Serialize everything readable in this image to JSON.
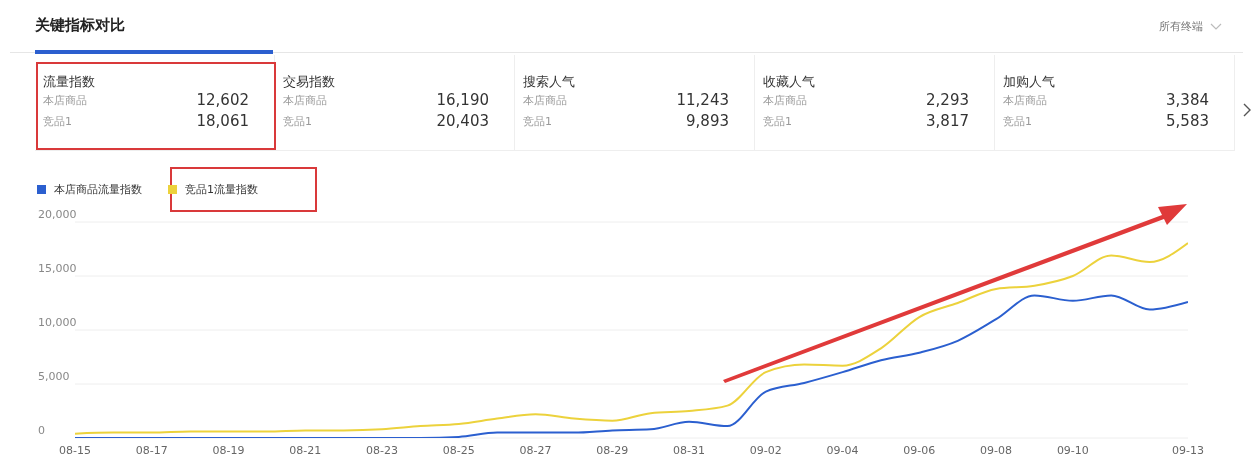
{
  "chart_data": [
    {
      "type": "other",
      "title": "关键指标对比",
      "annotations": [
        "所有终端",
        "流量指数",
        "本店商品",
        "12,602",
        "竞品1",
        "18,061",
        "交易指数",
        "本店商品",
        "16,190",
        "竞品1",
        "20,403",
        "搜索人气",
        "本店商品",
        "11,243",
        "竞品1",
        "9,893",
        "收藏人气",
        "本店商品",
        "2,293",
        "竞品1",
        "3,817",
        "加购人气",
        "本店商品",
        "3,384",
        "竞品1",
        "5,583"
      ]
    },
    {
      "type": "line",
      "categories": [
        "08-15",
        null,
        "08-17",
        null,
        "08-19",
        null,
        "08-21",
        null,
        "08-23",
        null,
        "08-25",
        null,
        "08-27",
        null,
        "08-29",
        null,
        "08-31",
        null,
        "09-02",
        null,
        "09-04",
        null,
        "09-06",
        null,
        "09-08",
        null,
        "09-10",
        null,
        null,
        "09-13"
      ],
      "ylim": [
        0,
        20000
      ],
      "yticks": [
        0,
        {
          "value": 5000,
          "label": "5,000"
        },
        {
          "value": 10000,
          "label": "10,000"
        },
        {
          "value": 15000,
          "label": "15,000"
        },
        {
          "value": 20000,
          "label": "20,000"
        }
      ],
      "grid": "y",
      "legend": "top left",
      "marker": "none",
      "line_style": "solid",
      "series": [
        {
          "name": "本店商品流量指数",
          "color": "#2b5fcf",
          "values": [
            0,
            0,
            0,
            0,
            0,
            0,
            0,
            0,
            0,
            0,
            100,
            500,
            500,
            500,
            700,
            800,
            1500,
            1100,
            4300,
            5100,
            6100,
            7200,
            7900,
            9000,
            11000,
            13200,
            12700,
            13200,
            11900,
            12602
          ]
        },
        {
          "name": "竞品1流量指数",
          "color": "#ecd23c",
          "values": [
            400,
            500,
            500,
            600,
            600,
            600,
            700,
            700,
            800,
            1100,
            1300,
            1800,
            2200,
            1800,
            1600,
            2300,
            2500,
            3000,
            6100,
            6800,
            6700,
            8300,
            11200,
            12500,
            13800,
            14100,
            15000,
            16900,
            16300,
            18061
          ]
        }
      ]
    }
  ]
}
